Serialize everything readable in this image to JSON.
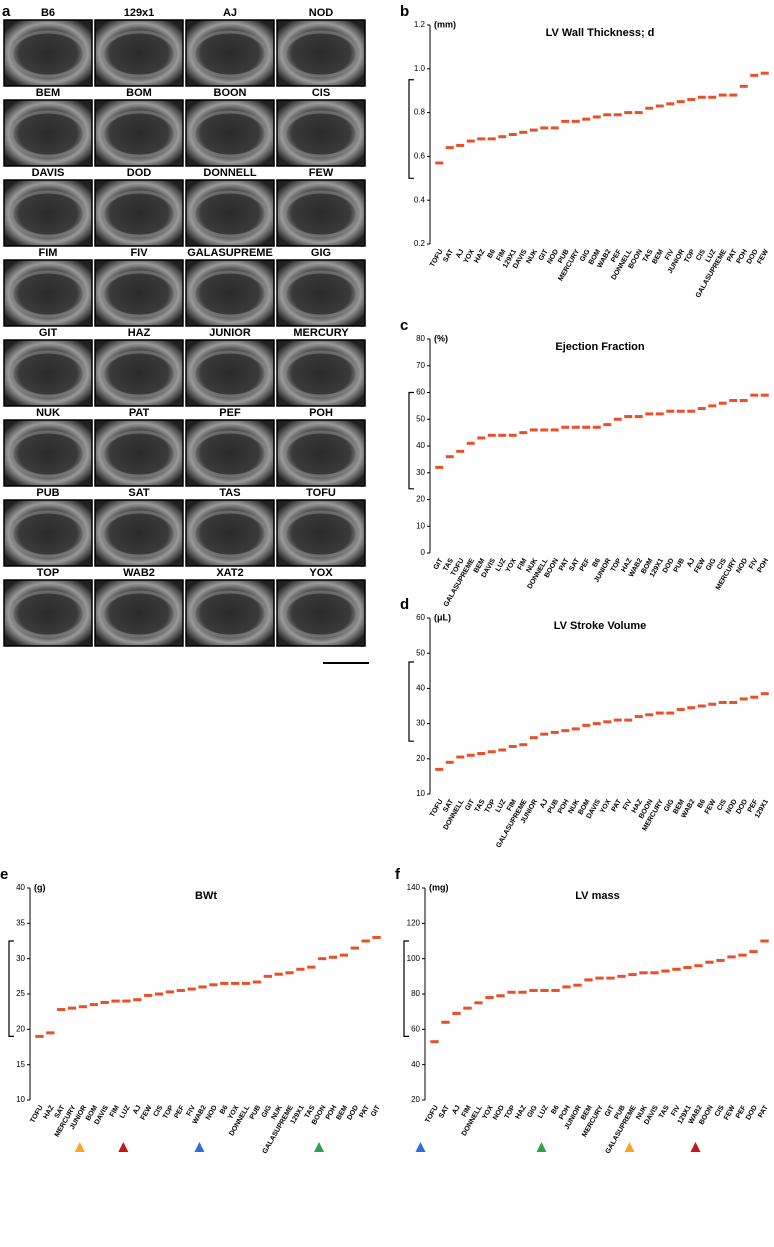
{
  "panel_a": {
    "label": "a",
    "images": [
      "B6",
      "129x1",
      "AJ",
      "NOD",
      "BEM",
      "BOM",
      "BOON",
      "CIS",
      "DAVIS",
      "DOD",
      "DONNELL",
      "FEW",
      "FIM",
      "FIV",
      "GALASUPREME",
      "GIG",
      "GIT",
      "HAZ",
      "JUNIOR",
      "MERCURY",
      "NUK",
      "PAT",
      "PEF",
      "POH",
      "PUB",
      "SAT",
      "TAS",
      "TOFU",
      "TOP",
      "WAB2",
      "XAT2",
      "YOX"
    ]
  },
  "chart_data": [
    {
      "type": "dot",
      "panel": "b",
      "title": "LV Wall Thickness; d",
      "unit": "(mm)",
      "color": "#e8502a",
      "categories": [
        "TOFU",
        "SAT",
        "AJ",
        "YOX",
        "HAZ",
        "B6",
        "FIM",
        "129X1",
        "DAVIS",
        "NUK",
        "GIT",
        "NOD",
        "PUB",
        "MERCURY",
        "GIG",
        "BOM",
        "WAB2",
        "PEF",
        "DONNELL",
        "BOON",
        "TAS",
        "BEM",
        "FIV",
        "JUNIOR",
        "TOP",
        "CIS",
        "LUZ",
        "GALASUPREME",
        "PAT",
        "POH",
        "DOD",
        "FEW"
      ],
      "values": [
        0.57,
        0.64,
        0.65,
        0.67,
        0.68,
        0.68,
        0.69,
        0.7,
        0.71,
        0.72,
        0.73,
        0.73,
        0.76,
        0.76,
        0.77,
        0.78,
        0.79,
        0.79,
        0.8,
        0.8,
        0.82,
        0.83,
        0.84,
        0.85,
        0.86,
        0.87,
        0.87,
        0.88,
        0.88,
        0.92,
        0.97,
        0.98
      ],
      "ylim": [
        0.2,
        1.2
      ],
      "yticks": [
        0.2,
        0.4,
        0.6,
        0.8,
        {
          "value": 1,
          "label": "1.0"
        },
        1.2
      ]
    },
    {
      "type": "dot",
      "panel": "c",
      "title": "Ejection Fraction",
      "unit": "(%)",
      "color": "#e8502a",
      "categories": [
        "GIT",
        "TAS",
        "TOFU",
        "GALASUPREME",
        "BEM",
        "DAVIS",
        "LUZ",
        "YOX",
        "FIM",
        "NUK",
        "DONNELL",
        "BOON",
        "PAT",
        "SAT",
        "PEF",
        "B6",
        "JUNIOR",
        "TOP",
        "HAZ",
        "WAB2",
        "BOM",
        "129X1",
        "DOD",
        "PUB",
        "AJ",
        "FEW",
        "GIG",
        "CIS",
        "MERCURY",
        "NOD",
        "FIV",
        "POH"
      ],
      "values": [
        32,
        36,
        38,
        41,
        43,
        44,
        44,
        44,
        45,
        46,
        46,
        46,
        47,
        47,
        47,
        47,
        48,
        50,
        51,
        51,
        52,
        52,
        53,
        53,
        53,
        54,
        55,
        56,
        57,
        57,
        59,
        59
      ],
      "ylim": [
        0,
        80
      ],
      "yticks": [
        0,
        10,
        20,
        30,
        40,
        50,
        60,
        70,
        80
      ]
    },
    {
      "type": "dot",
      "panel": "d",
      "title": "LV Stroke Volume",
      "unit": "(μL)",
      "color": "#e8502a",
      "categories": [
        "TOFU",
        "SAT",
        "DONNELL",
        "GIT",
        "TAS",
        "TOP",
        "LUZ",
        "FIM",
        "GALASUPREME",
        "JUNIOR",
        "AJ",
        "PUB",
        "POH",
        "NUK",
        "BOM",
        "DAVIS",
        "YOX",
        "PAT",
        "FIV",
        "HAZ",
        "BOON",
        "MERCURY",
        "GIG",
        "BEM",
        "WAB2",
        "B6",
        "FEW",
        "CIS",
        "NOD",
        "DOD",
        "PEF",
        "129X1"
      ],
      "values": [
        17,
        19,
        20.5,
        21,
        21.5,
        22,
        22.5,
        23.5,
        24,
        26,
        27,
        27.5,
        28,
        28.5,
        29.5,
        30,
        30.5,
        31,
        31,
        32,
        32.5,
        33,
        33,
        34,
        34.5,
        35,
        35.5,
        36,
        36,
        37,
        37.5,
        38.5
      ],
      "ylim": [
        10,
        60
      ],
      "yticks": [
        10,
        20,
        30,
        40,
        50,
        60
      ]
    },
    {
      "type": "dot",
      "panel": "e",
      "title": "BWt",
      "unit": "(g)",
      "color": "#e8502a",
      "categories": [
        "TOFU",
        "HAZ",
        "SAT",
        "MERCURY",
        "JUNIOR",
        "BOM",
        "DAVIS",
        "FIM",
        "LUZ",
        "AJ",
        "FEW",
        "CIS",
        "TOP",
        "PEF",
        "FIV",
        "WAB2",
        "NOD",
        "B6",
        "YOX",
        "DONNELL",
        "PUB",
        "GIG",
        "NUK",
        "GALASUPREME",
        "129X1",
        "TAS",
        "BOON",
        "POH",
        "BEM",
        "DOD",
        "PAT",
        "GIT"
      ],
      "values": [
        19,
        19.5,
        22.8,
        23,
        23.2,
        23.5,
        23.8,
        24,
        24,
        24.2,
        24.8,
        25,
        25.3,
        25.5,
        25.7,
        26,
        26.3,
        26.5,
        26.5,
        26.5,
        26.7,
        27.5,
        27.8,
        28,
        28.5,
        28.8,
        30,
        30.2,
        30.5,
        31.5,
        32.5,
        33
      ],
      "ylim": [
        10,
        40
      ],
      "yticks": [
        10,
        15,
        20,
        25,
        30,
        35,
        40
      ]
    },
    {
      "type": "dot",
      "panel": "f",
      "title": "LV mass",
      "unit": "(mg)",
      "color": "#e8502a",
      "categories": [
        "TOFU",
        "SAT",
        "AJ",
        "FIM",
        "DONNELL",
        "YOX",
        "NOD",
        "TOP",
        "HAZ",
        "GIG",
        "LUZ",
        "B6",
        "POH",
        "JUNIOR",
        "BEM",
        "MERCURY",
        "GIT",
        "PUB",
        "GALASUPREME",
        "NUK",
        "DAVIS",
        "TAS",
        "FIV",
        "129X1",
        "WAB2",
        "BOON",
        "CIS",
        "FEW",
        "PEF",
        "DOD",
        "PAT"
      ],
      "values": [
        53,
        64,
        69,
        72,
        75,
        78,
        79,
        81,
        81,
        82,
        82,
        82,
        84,
        85,
        88,
        89,
        89,
        90,
        91,
        92,
        92,
        93,
        94,
        95,
        96,
        98,
        99,
        101,
        102,
        104,
        110
      ],
      "ylim": [
        20,
        140
      ],
      "yticks": [
        20,
        40,
        60,
        80,
        100,
        120,
        140
      ]
    }
  ]
}
